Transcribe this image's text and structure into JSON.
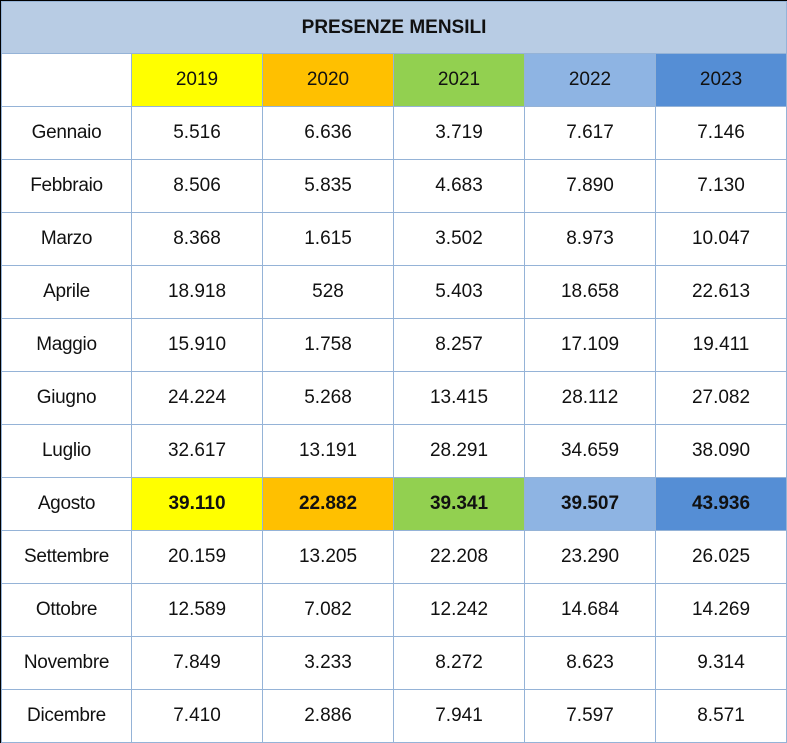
{
  "title": "PRESENZE MENSILI",
  "years": [
    "2019",
    "2020",
    "2021",
    "2022",
    "2023"
  ],
  "year_colors": [
    "#ffff00",
    "#ffc000",
    "#92d050",
    "#8eb4e3",
    "#558ed5"
  ],
  "title_bg": "#b8cce4",
  "highlight_row": "Agosto",
  "rows": [
    {
      "month": "Gennaio",
      "values": [
        "5.516",
        "6.636",
        "3.719",
        "7.617",
        "7.146"
      ]
    },
    {
      "month": "Febbraio",
      "values": [
        "8.506",
        "5.835",
        "4.683",
        "7.890",
        "7.130"
      ]
    },
    {
      "month": "Marzo",
      "values": [
        "8.368",
        "1.615",
        "3.502",
        "8.973",
        "10.047"
      ]
    },
    {
      "month": "Aprile",
      "values": [
        "18.918",
        "528",
        "5.403",
        "18.658",
        "22.613"
      ]
    },
    {
      "month": "Maggio",
      "values": [
        "15.910",
        "1.758",
        "8.257",
        "17.109",
        "19.411"
      ]
    },
    {
      "month": "Giugno",
      "values": [
        "24.224",
        "5.268",
        "13.415",
        "28.112",
        "27.082"
      ]
    },
    {
      "month": "Luglio",
      "values": [
        "32.617",
        "13.191",
        "28.291",
        "34.659",
        "38.090"
      ]
    },
    {
      "month": "Agosto",
      "values": [
        "39.110",
        "22.882",
        "39.341",
        "39.507",
        "43.936"
      ]
    },
    {
      "month": "Settembre",
      "values": [
        "20.159",
        "13.205",
        "22.208",
        "23.290",
        "26.025"
      ]
    },
    {
      "month": "Ottobre",
      "values": [
        "12.589",
        "7.082",
        "12.242",
        "14.684",
        "14.269"
      ]
    },
    {
      "month": "Novembre",
      "values": [
        "7.849",
        "3.233",
        "8.272",
        "8.623",
        "9.314"
      ]
    },
    {
      "month": "Dicembre",
      "values": [
        "7.410",
        "2.886",
        "7.941",
        "7.597",
        "8.571"
      ]
    }
  ]
}
